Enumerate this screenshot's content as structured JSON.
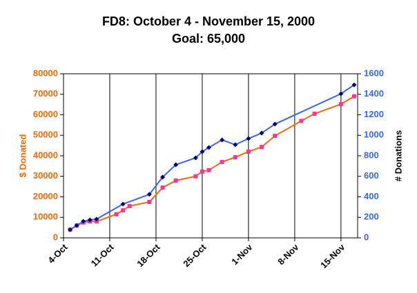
{
  "chart_data": {
    "type": "line",
    "title": "FD8: October 4 - November 15, 2000",
    "subtitle": "Goal: 65,000",
    "y_label": "$ Donated",
    "y2_label": "# Donations",
    "xlim": [
      "4-Oct",
      "17-Nov"
    ],
    "xticks": [
      "4-Oct",
      "11-Oct",
      "18-Oct",
      "25-Oct",
      "1-Nov",
      "8-Nov",
      "15-Nov"
    ],
    "ylim": [
      0,
      80000
    ],
    "yticks": [
      0,
      10000,
      20000,
      30000,
      40000,
      50000,
      60000,
      70000,
      80000
    ],
    "y2lim": [
      0,
      1600
    ],
    "y2ticks": [
      0,
      200,
      400,
      600,
      800,
      1000,
      1200,
      1400,
      1600
    ],
    "grid": true,
    "series": [
      {
        "name": "$ Donated",
        "color": "#ff6600",
        "marker_color": "#ff3399",
        "x": [
          "5-Oct",
          "6-Oct",
          "7-Oct",
          "8-Oct",
          "9-Oct",
          "12-Oct",
          "13-Oct",
          "14-Oct",
          "17-Oct",
          "19-Oct",
          "21-Oct",
          "24-Oct",
          "25-Oct",
          "26-Oct",
          "28-Oct",
          "30-Oct",
          "1-Nov",
          "3-Nov",
          "5-Nov",
          "9-Nov",
          "11-Nov",
          "15-Nov",
          "17-Nov"
        ],
        "values": [
          4000,
          6000,
          7500,
          8000,
          8000,
          11500,
          13400,
          15500,
          17500,
          24500,
          27900,
          30000,
          32300,
          33000,
          37000,
          39300,
          42000,
          44300,
          49700,
          57000,
          60500,
          65200,
          69000
        ]
      },
      {
        "name": "# Donations",
        "color": "#3366ff",
        "marker_color": "#000080",
        "axis": "y2",
        "x": [
          "5-Oct",
          "6-Oct",
          "7-Oct",
          "8-Oct",
          "9-Oct",
          "13-Oct",
          "17-Oct",
          "19-Oct",
          "21-Oct",
          "24-Oct",
          "25-Oct",
          "26-Oct",
          "28-Oct",
          "30-Oct",
          "1-Nov",
          "3-Nov",
          "5-Nov",
          "15-Nov",
          "17-Nov"
        ],
        "values": [
          80,
          121,
          161,
          175,
          182,
          329,
          424,
          592,
          713,
          780,
          840,
          881,
          955,
          908,
          968,
          1022,
          1109,
          1405,
          1492
        ]
      }
    ]
  }
}
